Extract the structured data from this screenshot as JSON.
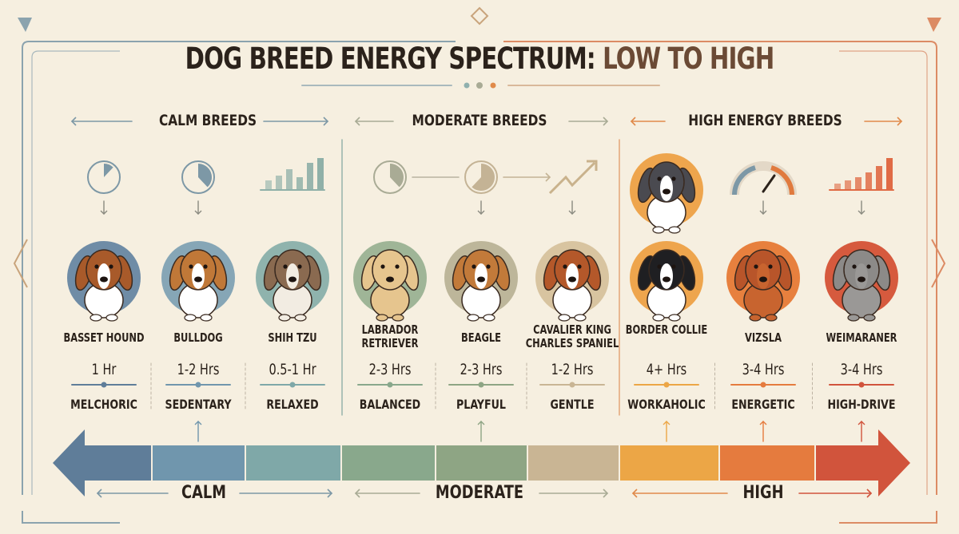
{
  "title": {
    "part1": "DOG BREED ENERGY SPECTRUM: ",
    "part2": "LOW TO HIGH"
  },
  "categories": [
    {
      "label": "CALM BREEDS",
      "color": "#7d98a6"
    },
    {
      "label": "MODERATE BREEDS",
      "color": "#a9ab95"
    },
    {
      "label": "HIGH ENERGY BREEDS",
      "color": "#e08a4a"
    }
  ],
  "breeds": [
    {
      "name": "BASSET HOUND",
      "hours": "1 Hr",
      "temperament": "MELCHORIC",
      "icon": "clock-icon",
      "circle": "#6f8ca6",
      "coat": "#a85a2a",
      "accent": "#ffffff"
    },
    {
      "name": "BULLDOG",
      "hours": "1-2 Hrs",
      "temperament": "SEDENTARY",
      "icon": "clock-icon",
      "circle": "#86a6b6",
      "coat": "#c07838",
      "accent": "#ffffff"
    },
    {
      "name": "SHIH TZU",
      "hours": "0.5-1 Hr",
      "temperament": "RELAXED",
      "icon": "bar-chart-icon",
      "circle": "#8fb3ad",
      "coat": "#8a6a50",
      "accent": "#f2ece2"
    },
    {
      "name": "LABRADOR RETRIEVER",
      "hours": "2-3 Hrs",
      "temperament": "BALANCED",
      "icon": "clock-icon",
      "circle": "#9fb597",
      "coat": "#e6c58e",
      "accent": "#e6c58e"
    },
    {
      "name": "BEAGLE",
      "hours": "2-3 Hrs",
      "temperament": "PLAYFUL",
      "icon": "clock-icon",
      "circle": "#bdb69a",
      "coat": "#c27a3a",
      "accent": "#ffffff"
    },
    {
      "name": "CAVALIER KING CHARLES SPANIEL",
      "hours": "1-2 Hrs",
      "temperament": "GENTLE",
      "icon": "trend-up-icon",
      "circle": "#d8c4a0",
      "coat": "#b4582a",
      "accent": "#ffffff"
    },
    {
      "name": "BORDER COLLIE",
      "hours": "4+ Hrs",
      "temperament": "WORKAHOLIC",
      "icon": "husky-icon",
      "circle": "#eea54d",
      "coat": "#1f1f22",
      "accent": "#ffffff"
    },
    {
      "name": "VIZSLA",
      "hours": "3-4 Hrs",
      "temperament": "ENERGETIC",
      "icon": "gauge-icon",
      "circle": "#e7803e",
      "coat": "#b8552a",
      "accent": "#c8642f"
    },
    {
      "name": "WEIMARANER",
      "hours": "3-4 Hrs",
      "temperament": "HIGH-DRIVE",
      "icon": "bar-chart-icon",
      "circle": "#d65a3e",
      "coat": "#8c8a88",
      "accent": "#9a9896"
    }
  ],
  "spectrum_colors": [
    "#5f7d99",
    "#7096ad",
    "#7fa8a8",
    "#89a88c",
    "#8ea584",
    "#c9b594",
    "#eca646",
    "#e57b3e",
    "#d1543c"
  ],
  "bottom_labels": [
    {
      "label": "CALM",
      "color": "#7d98a6"
    },
    {
      "label": "MODERATE",
      "color": "#a9ab95"
    },
    {
      "label": "HIGH",
      "color": "#e08a4a"
    }
  ]
}
